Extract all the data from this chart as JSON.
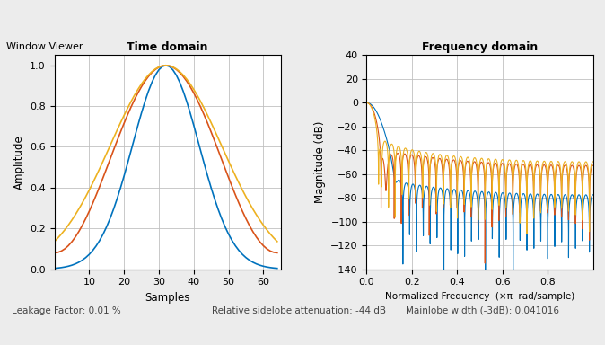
{
  "title_time": "Time domain",
  "title_freq": "Frequency domain",
  "xlabel_time": "Samples",
  "ylabel_time": "Amplitude",
  "xlabel_freq": "Normalized Frequency  (×π  rad/sample)",
  "ylabel_freq": "Magnitude (dB)",
  "n_samples": 65,
  "color_blue": "#0072BD",
  "color_orange": "#EDB120",
  "color_red": "#D95319",
  "bg_color": "#ECECEC",
  "axes_bg": "#FFFFFF",
  "grid_color": "#C0C0C0",
  "bottom_text_left": "Leakage Factor: 0.01 %",
  "bottom_text_mid": "Relative sidelobe attenuation: -44 dB",
  "bottom_text_right": "Mainlobe width (-3dB): 0.041016",
  "panel_label": "Window Viewer",
  "ylim_time": [
    0,
    1.05
  ],
  "ylim_freq": [
    -140,
    40
  ],
  "xlim_time": [
    0,
    65
  ],
  "xlim_freq": [
    0,
    1.0
  ],
  "gaussian_std": 0.3,
  "NFFT": 8192
}
